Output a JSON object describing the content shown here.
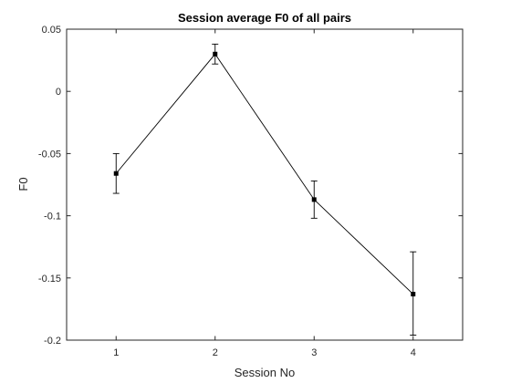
{
  "chart_data": {
    "type": "line",
    "title": "Session average F0 of all pairs",
    "xlabel": "Session No",
    "ylabel": "F0",
    "xlim": [
      0.5,
      4.5
    ],
    "ylim": [
      -0.2,
      0.05
    ],
    "x_ticks": [
      1,
      2,
      3,
      4
    ],
    "x_tick_labels": [
      "1",
      "2",
      "3",
      "4"
    ],
    "y_ticks": [
      -0.2,
      -0.15,
      -0.1,
      -0.05,
      0,
      0.05
    ],
    "y_tick_labels": [
      "-0.2",
      "-0.15",
      "-0.1",
      "-0.05",
      "0",
      "0.05"
    ],
    "grid": false,
    "legend": "none",
    "line_color": "#000000",
    "series": [
      {
        "x": [
          1,
          2,
          3,
          4
        ],
        "y": [
          -0.066,
          0.03,
          -0.087,
          -0.163
        ],
        "err_low": [
          0.016,
          0.008,
          0.015,
          0.033
        ],
        "err_high": [
          0.016,
          0.008,
          0.015,
          0.034
        ]
      }
    ]
  }
}
